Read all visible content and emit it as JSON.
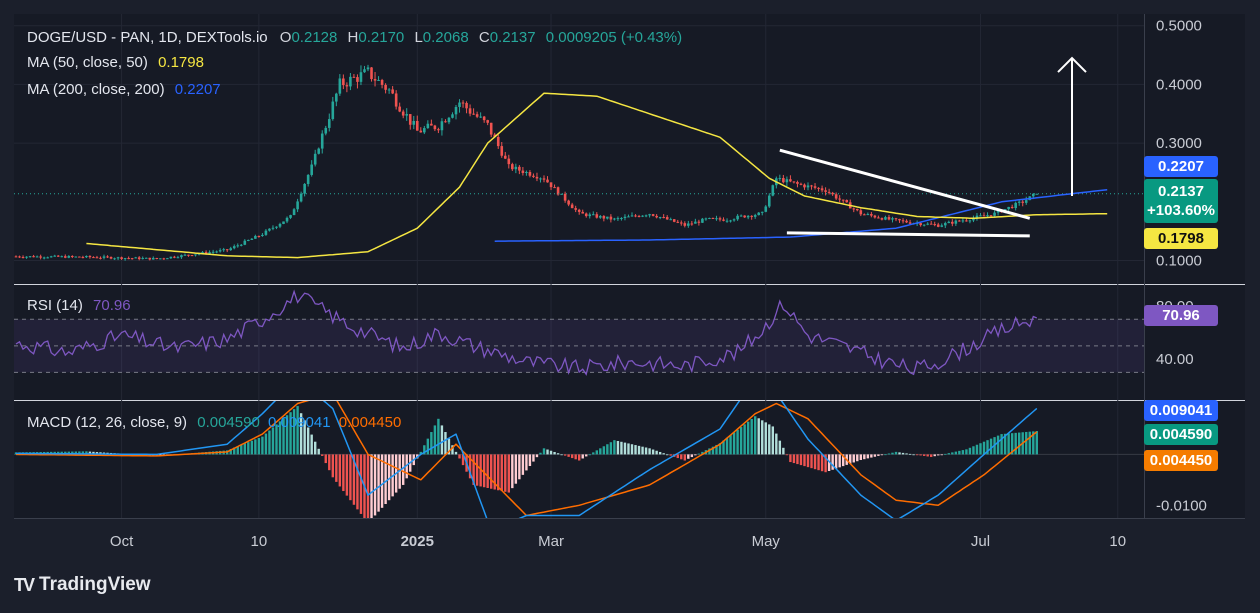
{
  "brand": {
    "logo": "TV",
    "name": "TradingView"
  },
  "legend": {
    "symbol": "DOGE/USD - PAN, 1D, DEXTools.io",
    "open_label": "O",
    "open": "0.2128",
    "high_label": "H",
    "high": "0.2170",
    "low_label": "L",
    "low": "0.2068",
    "close_label": "C",
    "close": "0.2137",
    "change": "0.0009205 (+0.43%)",
    "ma50_label": "MA (50, close, 50)",
    "ma50_value": "0.1798",
    "ma200_label": "MA (200, close, 200)",
    "ma200_value": "0.2207",
    "rsi_label": "RSI (14)",
    "rsi_value": "70.96",
    "macd_label": "MACD (12, 26, close, 9)",
    "macd_hist": "0.004590",
    "macd_line": "0.009041",
    "macd_signal": "0.004450"
  },
  "price_tags": {
    "ma200": "0.2207",
    "last": "0.2137",
    "last_pct": "+103.60%",
    "ma50": "0.1798",
    "rsi": "70.96",
    "macd_line": "0.009041",
    "macd_hist": "0.004590",
    "macd_signal": "0.004450"
  },
  "colors": {
    "up": "#26a69a",
    "down": "#ef5350",
    "ma50": "#f5e642",
    "ma200": "#2962ff",
    "rsi": "#7e57c2",
    "macd_line": "#2196f3",
    "signal": "#ff6d00",
    "trendline": "#ffffff",
    "tag_blue": "#2962ff",
    "tag_green": "#089981",
    "tag_yellow": "#f5e642",
    "tag_purple": "#7e57c2",
    "tag_orange": "#f57c00",
    "hist_up": "#26a69a",
    "hist_down": "#ef5350"
  },
  "chart_data": [
    {
      "type": "candlestick",
      "name": "price",
      "title": "DOGE/USD - PAN, 1D, DEXTools.io",
      "ylim": [
        0.06,
        0.52
      ],
      "y_ticks": [
        "0.5000",
        "0.4000",
        "0.3000",
        "0.1000"
      ],
      "x_ticks": [
        "Oct",
        "10",
        "2025",
        "Mar",
        "May",
        "Jul",
        "10"
      ],
      "x_tick_days": [
        30,
        69,
        114,
        152,
        213,
        274,
        313
      ],
      "key_closes": {
        "days": [
          0,
          20,
          40,
          60,
          70,
          78,
          84,
          92,
          100,
          106,
          114,
          120,
          126,
          134,
          140,
          150,
          160,
          170,
          180,
          190,
          196,
          202,
          206,
          212,
          216,
          222,
          230,
          240,
          248,
          254,
          262,
          270,
          278,
          286,
          290
        ],
        "values": [
          0.107,
          0.106,
          0.103,
          0.118,
          0.145,
          0.175,
          0.26,
          0.4,
          0.42,
          0.39,
          0.32,
          0.33,
          0.37,
          0.33,
          0.26,
          0.24,
          0.18,
          0.17,
          0.18,
          0.16,
          0.17,
          0.17,
          0.175,
          0.18,
          0.24,
          0.23,
          0.22,
          0.18,
          0.17,
          0.165,
          0.16,
          0.17,
          0.18,
          0.2,
          0.2137
        ]
      },
      "ma50": {
        "days": [
          20,
          60,
          80,
          100,
          114,
          126,
          134,
          150,
          165,
          180,
          200,
          214,
          224,
          240,
          256,
          272,
          290,
          310
        ],
        "values": [
          0.129,
          0.108,
          0.105,
          0.115,
          0.155,
          0.225,
          0.3,
          0.385,
          0.38,
          0.35,
          0.31,
          0.24,
          0.21,
          0.19,
          0.175,
          0.172,
          0.178,
          0.1798
        ]
      },
      "ma200": {
        "days": [
          136,
          180,
          220,
          250,
          280,
          310
        ],
        "values": [
          0.133,
          0.135,
          0.14,
          0.155,
          0.2,
          0.2207
        ]
      },
      "patterns": [
        "descending trendline resistance",
        "horizontal support",
        "upward arrow"
      ],
      "last": 0.2137,
      "change_pct": "+103.60%"
    },
    {
      "type": "line",
      "name": "rsi",
      "title": "RSI (14)",
      "ylim": [
        10,
        95
      ],
      "levels": [
        70,
        50,
        30
      ],
      "y_ticks": [
        "80.00",
        "40.00"
      ],
      "points": {
        "days": [
          0,
          15,
          30,
          45,
          60,
          70,
          80,
          95,
          110,
          120,
          130,
          145,
          160,
          175,
          190,
          205,
          212,
          218,
          225,
          235,
          245,
          255,
          262,
          270,
          280,
          290
        ],
        "values": [
          52,
          45,
          58,
          48,
          55,
          70,
          88,
          65,
          48,
          60,
          50,
          38,
          33,
          38,
          35,
          45,
          62,
          82,
          58,
          50,
          40,
          32,
          38,
          48,
          62,
          70.96
        ]
      }
    },
    {
      "type": "bar+line",
      "name": "macd",
      "title": "MACD (12, 26, close, 9)",
      "ylim": [
        -0.0125,
        0.0105
      ],
      "y_ticks": [
        "-0.0100"
      ],
      "histogram": {
        "days": [
          0,
          20,
          40,
          60,
          70,
          80,
          90,
          100,
          110,
          120,
          130,
          140,
          150,
          160,
          170,
          180,
          190,
          200,
          210,
          215,
          220,
          230,
          240,
          250,
          260,
          270,
          280,
          290
        ],
        "values": [
          0.0004,
          0.0006,
          -0.0003,
          0.0008,
          0.0035,
          0.0095,
          -0.0045,
          -0.0135,
          -0.006,
          0.007,
          -0.006,
          -0.0075,
          0.0012,
          -0.0012,
          0.0028,
          0.0012,
          -0.0012,
          0.0022,
          0.0075,
          0.0055,
          -0.0015,
          -0.0035,
          -0.0011,
          0.0005,
          -0.0005,
          0.001,
          0.004,
          0.00459
        ]
      },
      "macd_line": {
        "days": [
          0,
          40,
          60,
          70,
          80,
          90,
          100,
          115,
          125,
          135,
          145,
          160,
          180,
          200,
          210,
          216,
          225,
          240,
          250,
          262,
          275,
          290
        ],
        "values": [
          0.0002,
          0.0,
          0.002,
          0.008,
          0.015,
          0.009,
          -0.008,
          0.0,
          0.004,
          -0.015,
          -0.012,
          -0.012,
          -0.003,
          0.005,
          0.015,
          0.012,
          0.003,
          -0.008,
          -0.013,
          -0.008,
          0.0,
          0.009041
        ]
      },
      "signal_line": {
        "days": [
          0,
          40,
          60,
          70,
          80,
          90,
          100,
          115,
          125,
          135,
          145,
          160,
          180,
          200,
          210,
          216,
          225,
          240,
          250,
          262,
          275,
          290
        ],
        "values": [
          0.0,
          -0.0003,
          0.0005,
          0.004,
          0.01,
          0.012,
          0.0,
          -0.005,
          0.002,
          -0.005,
          -0.012,
          -0.01,
          -0.006,
          0.002,
          0.008,
          0.01,
          0.007,
          -0.004,
          -0.009,
          -0.01,
          -0.004,
          0.00445
        ]
      }
    }
  ]
}
